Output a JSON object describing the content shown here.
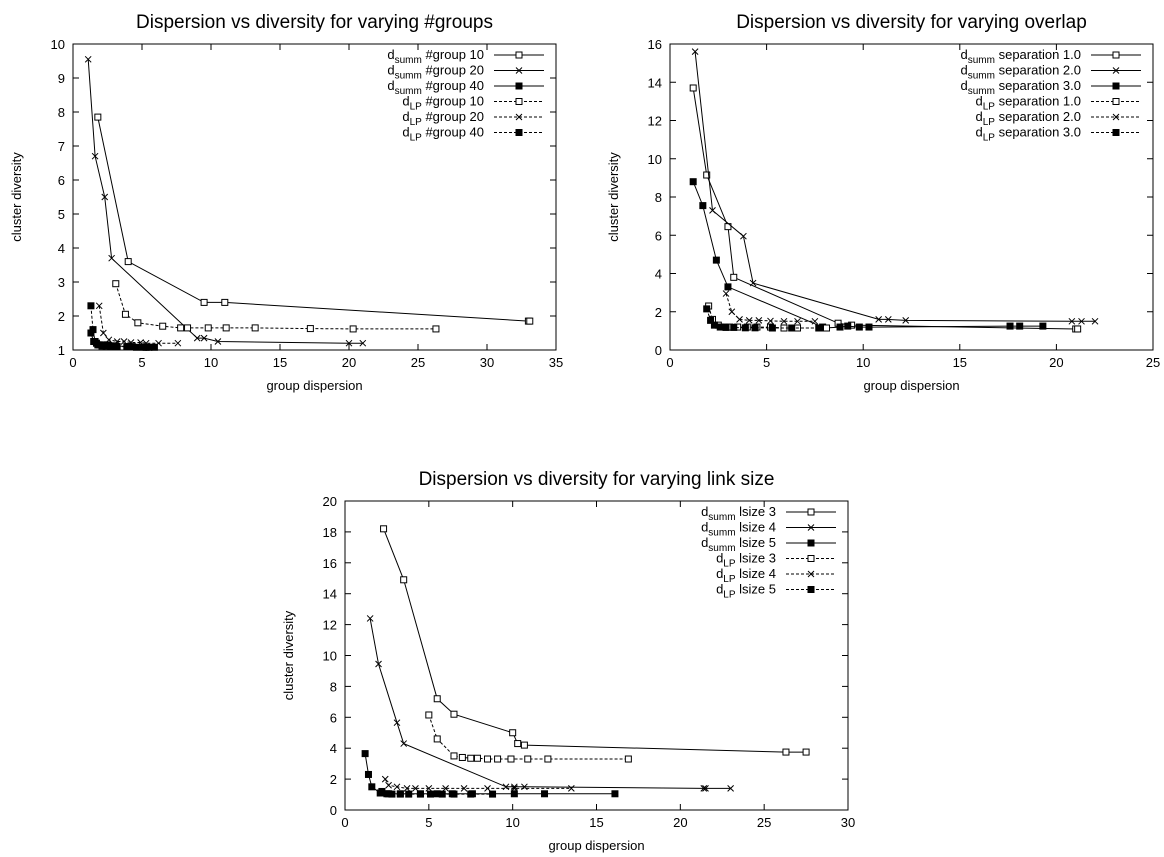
{
  "chart_data": [
    {
      "type": "line",
      "title": "Dispersion vs diversity for varying #groups",
      "xlabel": "group dispersion",
      "ylabel": "cluster diversity",
      "xlim": [
        0,
        35
      ],
      "ylim": [
        1,
        10
      ],
      "xticks": [
        0,
        5,
        10,
        15,
        20,
        25,
        30,
        35
      ],
      "yticks": [
        1,
        2,
        3,
        4,
        5,
        6,
        7,
        8,
        9,
        10
      ],
      "legend_position": "top-right",
      "series": [
        {
          "name": "#group 10",
          "metric": "summ",
          "marker": "open-square",
          "dashed": false,
          "x": [
            1.8,
            4,
            9.5,
            11,
            33,
            33.1
          ],
          "y": [
            7.85,
            3.6,
            2.4,
            2.4,
            1.85,
            1.85
          ]
        },
        {
          "name": "#group 20",
          "metric": "summ",
          "marker": "cross",
          "dashed": false,
          "x": [
            1.1,
            1.6,
            2.3,
            2.8,
            9,
            9.5,
            10.5,
            20,
            21
          ],
          "y": [
            9.55,
            6.7,
            5.5,
            3.7,
            1.35,
            1.35,
            1.25,
            1.2,
            1.2
          ]
        },
        {
          "name": "#group 40",
          "metric": "summ",
          "marker": "filled-square",
          "dashed": false,
          "x": [
            1.3,
            1.5,
            1.7,
            1.9,
            2.2,
            2.5,
            2.8,
            3.1,
            4,
            4.3,
            5.1,
            5.5,
            5.9
          ],
          "y": [
            1.5,
            1.25,
            1.2,
            1.15,
            1.15,
            1.15,
            1.12,
            1.12,
            1.1,
            1.1,
            1.08,
            1.08,
            1.08
          ]
        },
        {
          "name": "#group 10",
          "metric": "LP",
          "marker": "open-square",
          "dashed": true,
          "x": [
            3.1,
            3.8,
            4.7,
            6.5,
            7.8,
            8.3,
            9.8,
            11.1,
            13.2,
            17.2,
            20.3,
            26.3
          ],
          "y": [
            2.95,
            2.05,
            1.8,
            1.7,
            1.65,
            1.65,
            1.65,
            1.65,
            1.65,
            1.63,
            1.62,
            1.62
          ]
        },
        {
          "name": "#group 20",
          "metric": "LP",
          "marker": "cross",
          "dashed": true,
          "x": [
            1.9,
            2.2,
            2.6,
            3.2,
            3.7,
            4.2,
            4.9,
            5.3,
            6.2,
            7.6
          ],
          "y": [
            2.3,
            1.5,
            1.3,
            1.25,
            1.25,
            1.22,
            1.22,
            1.2,
            1.2,
            1.2
          ]
        },
        {
          "name": "#group 40",
          "metric": "LP",
          "marker": "filled-square",
          "dashed": true,
          "x": [
            1.3,
            1.45,
            1.6,
            1.8,
            2.1,
            2.4,
            2.7,
            3.2,
            3.9,
            4.6,
            5.3
          ],
          "y": [
            2.3,
            1.6,
            1.25,
            1.15,
            1.12,
            1.12,
            1.12,
            1.1,
            1.1,
            1.08,
            1.08
          ]
        }
      ]
    },
    {
      "type": "line",
      "title": "Dispersion vs diversity for varying overlap",
      "xlabel": "group dispersion",
      "ylabel": "cluster diversity",
      "xlim": [
        0,
        25
      ],
      "ylim": [
        0,
        16
      ],
      "xticks": [
        0,
        5,
        10,
        15,
        20,
        25
      ],
      "yticks": [
        0,
        2,
        4,
        6,
        8,
        10,
        12,
        14,
        16
      ],
      "legend_position": "top-right",
      "series": [
        {
          "name": "separation 1.0",
          "metric": "summ",
          "marker": "open-square",
          "dashed": false,
          "x": [
            1.2,
            1.9,
            3,
            3.3,
            8.7,
            9.4,
            21,
            21.1
          ],
          "y": [
            13.7,
            9.15,
            6.45,
            3.8,
            1.4,
            1.3,
            1.1,
            1.1
          ]
        },
        {
          "name": "separation 2.0",
          "metric": "summ",
          "marker": "cross",
          "dashed": false,
          "x": [
            1.3,
            2.2,
            3.8,
            4.3,
            10.8,
            11.3,
            12.2,
            20.8,
            21.3,
            22
          ],
          "y": [
            15.6,
            7.3,
            5.95,
            3.5,
            1.6,
            1.6,
            1.55,
            1.5,
            1.5,
            1.5
          ]
        },
        {
          "name": "separation 3.0",
          "metric": "summ",
          "marker": "filled-square",
          "dashed": false,
          "x": [
            1.2,
            1.7,
            2.4,
            3,
            7.9,
            8,
            8.8,
            9.2,
            9.8,
            10.3,
            17.6,
            18.1,
            19.3
          ],
          "y": [
            8.8,
            7.55,
            4.7,
            3.3,
            1.2,
            1.15,
            1.2,
            1.25,
            1.2,
            1.2,
            1.25,
            1.25,
            1.25
          ]
        },
        {
          "name": "separation 1.0",
          "metric": "LP",
          "marker": "open-square",
          "dashed": true,
          "x": [
            2,
            2.2,
            2.5,
            2.8,
            3.1,
            3.5,
            4,
            4.5,
            5.2,
            5.9,
            6.6,
            8.1
          ],
          "y": [
            2.3,
            1.6,
            1.3,
            1.2,
            1.2,
            1.2,
            1.2,
            1.2,
            1.2,
            1.15,
            1.15,
            1.15
          ]
        },
        {
          "name": "separation 2.0",
          "metric": "LP",
          "marker": "cross",
          "dashed": true,
          "x": [
            2.9,
            3.2,
            3.6,
            4.1,
            4.6,
            5.2,
            5.9,
            6.6,
            7.5
          ],
          "y": [
            2.95,
            2,
            1.6,
            1.55,
            1.55,
            1.52,
            1.5,
            1.5,
            1.5
          ]
        },
        {
          "name": "separation 3.0",
          "metric": "LP",
          "marker": "filled-square",
          "dashed": true,
          "x": [
            1.9,
            2.1,
            2.3,
            2.6,
            2.9,
            3.3,
            3.9,
            4.4,
            5.3,
            6.3,
            7.7
          ],
          "y": [
            2.15,
            1.55,
            1.3,
            1.2,
            1.18,
            1.18,
            1.16,
            1.16,
            1.15,
            1.15,
            1.15
          ]
        }
      ]
    },
    {
      "type": "line",
      "title": "Dispersion vs diversity for varying link size",
      "xlabel": "group dispersion",
      "ylabel": "cluster diversity",
      "xlim": [
        0,
        30
      ],
      "ylim": [
        0,
        20
      ],
      "xticks": [
        0,
        5,
        10,
        15,
        20,
        25,
        30
      ],
      "yticks": [
        0,
        2,
        4,
        6,
        8,
        10,
        12,
        14,
        16,
        18,
        20
      ],
      "legend_position": "top-right",
      "series": [
        {
          "name": "lsize 3",
          "metric": "summ",
          "marker": "open-square",
          "dashed": false,
          "x": [
            2.3,
            3.5,
            5.5,
            6.5,
            10,
            10.3,
            10.7,
            26.3,
            27.5
          ],
          "y": [
            18.2,
            14.9,
            7.2,
            6.2,
            5,
            4.3,
            4.2,
            3.75,
            3.75
          ]
        },
        {
          "name": "lsize 4",
          "metric": "summ",
          "marker": "cross",
          "dashed": false,
          "x": [
            1.5,
            2,
            3.1,
            3.5,
            9.6,
            10.1,
            10.7,
            21.4,
            21.5,
            23
          ],
          "y": [
            12.4,
            9.45,
            5.65,
            4.3,
            1.5,
            1.5,
            1.5,
            1.4,
            1.4,
            1.4
          ]
        },
        {
          "name": "lsize 5",
          "metric": "summ",
          "marker": "filled-square",
          "dashed": false,
          "x": [
            1.2,
            1.4,
            1.6,
            2.1,
            2.6,
            3.3,
            4.5,
            5.5,
            6.4,
            7.6,
            10.1,
            11.9,
            16.1
          ],
          "y": [
            3.65,
            2.3,
            1.5,
            1.1,
            1.05,
            1.05,
            1.05,
            1.05,
            1.05,
            1.05,
            1.05,
            1.05,
            1.05
          ]
        },
        {
          "name": "lsize 3",
          "metric": "LP",
          "marker": "open-square",
          "dashed": true,
          "x": [
            5,
            5.5,
            6.5,
            7,
            7.5,
            7.9,
            8.5,
            9.1,
            9.9,
            10.9,
            12.1,
            16.9
          ],
          "y": [
            6.15,
            4.6,
            3.5,
            3.4,
            3.35,
            3.35,
            3.3,
            3.3,
            3.3,
            3.3,
            3.3,
            3.3
          ]
        },
        {
          "name": "lsize 4",
          "metric": "LP",
          "marker": "cross",
          "dashed": true,
          "x": [
            2.4,
            2.6,
            3.1,
            3.7,
            4.2,
            5,
            6,
            7.1,
            8.5,
            10.1,
            13.5
          ],
          "y": [
            2,
            1.6,
            1.5,
            1.4,
            1.4,
            1.4,
            1.4,
            1.4,
            1.4,
            1.4,
            1.4
          ]
        },
        {
          "name": "lsize 5",
          "metric": "LP",
          "marker": "filled-square",
          "dashed": true,
          "x": [
            2.2,
            2.5,
            2.8,
            3.3,
            3.8,
            4.5,
            5.1,
            5.8,
            6.5,
            7.5,
            8.8
          ],
          "y": [
            1.2,
            1.05,
            1.03,
            1.03,
            1.03,
            1.03,
            1.03,
            1.03,
            1.03,
            1.03,
            1.03
          ]
        }
      ]
    }
  ]
}
